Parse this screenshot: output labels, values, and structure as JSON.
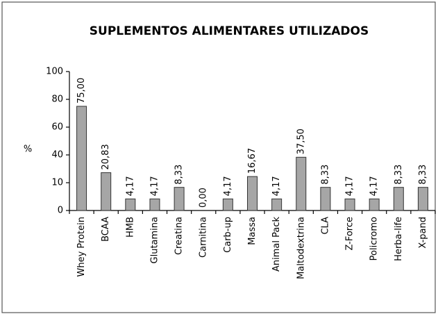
{
  "chart_data": {
    "type": "bar",
    "title": "SUPLEMENTOS ALIMENTARES UTILIZADOS",
    "y_label": "%",
    "categories": [
      "Whey  Protein",
      "BCAA",
      "HMB",
      "Glutamina",
      "Creatina",
      "Carnitina",
      "Carb-up",
      "Massa",
      "Animal Pack",
      "Maltodextrina",
      "CLA",
      "Z-Force",
      "Policromo",
      "Herba-life",
      "X-pand"
    ],
    "values": [
      75,
      20.83,
      4.17,
      4.17,
      8.33,
      0,
      4.17,
      16.67,
      4.17,
      37.5,
      8.33,
      4.17,
      4.17,
      8.33,
      8.33
    ],
    "value_labels": [
      "75,00",
      "20,83",
      "4,17",
      "4,17",
      "8,33",
      "0,00",
      "4,17",
      "16,67",
      "4,17",
      "37,50",
      "8,33",
      "4,17",
      "4,17",
      "8,33",
      "8,33"
    ],
    "color": "#a6a6a6",
    "ylim": [
      0,
      100
    ],
    "yticks": [
      0,
      10,
      40,
      60,
      80,
      100
    ],
    "grid": false
  }
}
